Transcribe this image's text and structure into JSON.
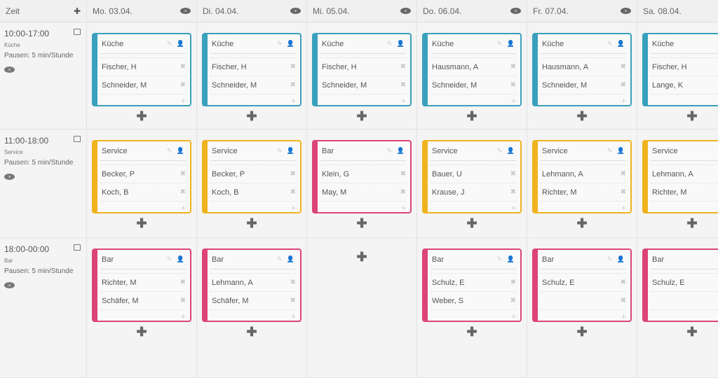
{
  "header": {
    "time_label": "Zeit",
    "add_icon": "plus-icon",
    "days": [
      "Mo. 03.04.",
      "Di. 04.04.",
      "Mi. 05.04.",
      "Do. 06.04.",
      "Fr. 07.04.",
      "Sa. 08.04."
    ]
  },
  "colors": {
    "Küche": "#39a0bd",
    "Service": "#f0b31f",
    "Bar": "#dc4478"
  },
  "shifts": [
    {
      "time": "10:00-17:00",
      "area": "Küche",
      "breaks": "Pausen: 5 min/Stunde",
      "cells": [
        {
          "area": "Küche",
          "staff": [
            "Fischer, H",
            "Schneider, M"
          ]
        },
        {
          "area": "Küche",
          "staff": [
            "Fischer, H",
            "Schneider, M"
          ]
        },
        {
          "area": "Küche",
          "staff": [
            "Fischer, H",
            "Schneider, M"
          ]
        },
        {
          "area": "Küche",
          "staff": [
            "Hausmann, A",
            "Schneider, M"
          ]
        },
        {
          "area": "Küche",
          "staff": [
            "Hausmann, A",
            "Schneider, M"
          ]
        },
        {
          "area": "Küche",
          "staff": [
            "Fischer, H",
            "Lange, K"
          ]
        }
      ]
    },
    {
      "time": "11:00-18:00",
      "area": "Service",
      "breaks": "Pausen: 5 min/Stunde",
      "cells": [
        {
          "area": "Service",
          "staff": [
            "Becker, P",
            "Koch, B"
          ]
        },
        {
          "area": "Service",
          "staff": [
            "Becker, P",
            "Koch, B"
          ]
        },
        {
          "area": "Bar",
          "staff": [
            "Klein, G",
            "May, M"
          ]
        },
        {
          "area": "Service",
          "staff": [
            "Bauer, U",
            "Krause, J"
          ]
        },
        {
          "area": "Service",
          "staff": [
            "Lehmann, A",
            "Richter, M"
          ]
        },
        {
          "area": "Service",
          "staff": [
            "Lehmann, A",
            "Richter, M"
          ]
        }
      ]
    },
    {
      "time": "18:00-00:00",
      "area": "Bar",
      "breaks": "Pausen: 5 min/Stunde",
      "cells": [
        {
          "area": "Bar",
          "staff": [
            "Richter, M",
            "Schäfer, M"
          ]
        },
        {
          "area": "Bar",
          "staff": [
            "Lehmann, A",
            "Schäfer, M"
          ]
        },
        null,
        {
          "area": "Bar",
          "staff": [
            "Schulz, E",
            "Weber, S"
          ]
        },
        {
          "area": "Bar",
          "staff": [
            "Schulz, E",
            ""
          ]
        },
        {
          "area": "Bar",
          "staff": [
            "Schulz, E",
            ""
          ]
        }
      ]
    }
  ]
}
